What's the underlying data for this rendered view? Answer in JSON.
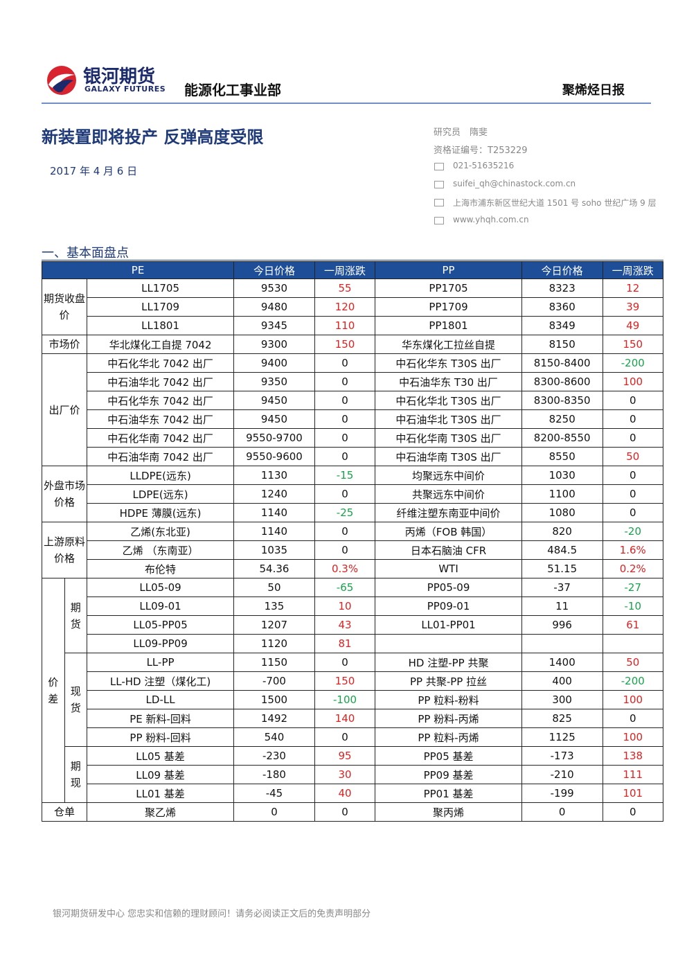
{
  "header": {
    "logo_cn": "银河期货",
    "logo_en": "GALAXY FUTURES",
    "dept": "能源化工事业部",
    "report": "聚烯烃日报"
  },
  "title": "新装置即将投产 反弹高度受限",
  "date": "2017 年 4 月 6 日",
  "contact": {
    "researcher": "研究员　隋斐",
    "cert": "资格证编号：T253229",
    "phone": "021-51635216",
    "email": "suifei_qh@chinastock.com.cn",
    "address": "上海市浦东新区世纪大道 1501 号 soho 世纪广场 9 层",
    "web": "www.yhqh.com.cn"
  },
  "section": "一、基本面盘点",
  "table": {
    "header": [
      "PE",
      "今日价格",
      "一周涨跌",
      "PP",
      "今日价格",
      "一周涨跌"
    ],
    "groups": [
      {
        "label": "期货收盘价",
        "rows": [
          [
            "LL1705",
            "9530",
            "55",
            "PP1705",
            "8323",
            "12"
          ],
          [
            "LL1709",
            "9480",
            "120",
            "PP1709",
            "8360",
            "39"
          ],
          [
            "LL1801",
            "9345",
            "110",
            "PP1801",
            "8349",
            "49"
          ]
        ]
      },
      {
        "label": "市场价",
        "rows": [
          [
            "华北煤化工自提 7042",
            "9300",
            "150",
            "华东煤化工拉丝自提",
            "8150",
            "150"
          ]
        ]
      },
      {
        "label": "出厂价",
        "rows": [
          [
            "中石化华北 7042 出厂",
            "9400",
            "0",
            "中石化华东 T30S 出厂",
            "8150-8400",
            "-200"
          ],
          [
            "中石油华北 7042 出厂",
            "9350",
            "0",
            "中石油华东 T30 出厂",
            "8300-8600",
            "100"
          ],
          [
            "中石化华东 7042 出厂",
            "9450",
            "0",
            "中石化华北 T30S 出厂",
            "8300-8350",
            "0"
          ],
          [
            "中石油华东 7042 出厂",
            "9450",
            "0",
            "中石油华北 T30S 出厂",
            "8250",
            "0"
          ],
          [
            "中石化华南 7042 出厂",
            "9550-9700",
            "0",
            "中石化华南 T30S 出厂",
            "8200-8550",
            "0"
          ],
          [
            "中石油华南 7042 出厂",
            "9550-9600",
            "0",
            "中石油华南 T30S 出厂",
            "8550",
            "50"
          ]
        ]
      },
      {
        "label": "外盘市场价格",
        "rows": [
          [
            "LLDPE(远东)",
            "1130",
            "-15",
            "均聚远东中间价",
            "1030",
            "0"
          ],
          [
            "LDPE(远东)",
            "1240",
            "0",
            "共聚远东中间价",
            "1100",
            "0"
          ],
          [
            "HDPE 薄膜(远东)",
            "1140",
            "-25",
            "纤维注塑东南亚中间价",
            "1080",
            "0"
          ]
        ]
      },
      {
        "label": "上游原料价格",
        "rows": [
          [
            "乙烯(东北亚)",
            "1140",
            "0",
            "丙烯（FOB 韩国）",
            "820",
            "-20"
          ],
          [
            "乙烯 （东南亚）",
            "1035",
            "0",
            "日本石脑油 CFR",
            "484.5",
            "1.6%"
          ],
          [
            "布伦特",
            "54.36",
            "0.3%",
            "WTI",
            "51.15",
            "0.2%"
          ]
        ]
      },
      {
        "label": "价差",
        "subgroups": [
          {
            "label": "期货",
            "rows": [
              [
                "LL05-09",
                "50",
                "-65",
                "PP05-09",
                "-37",
                "-27"
              ],
              [
                "LL09-01",
                "135",
                "10",
                "PP09-01",
                "11",
                "-10"
              ],
              [
                "LL05-PP05",
                "1207",
                "43",
                "LL01-PP01",
                "996",
                "61"
              ],
              [
                "LL09-PP09",
                "1120",
                "81"
              ]
            ]
          },
          {
            "label": "现货",
            "rows": [
              [
                "LL-PP",
                "1150",
                "0",
                "HD 注塑-PP 共聚",
                "1400",
                "50"
              ],
              [
                "LL-HD 注塑（煤化工)",
                "-700",
                "150",
                "PP 共聚-PP 拉丝",
                "400",
                "-200"
              ],
              [
                "LD-LL",
                "1500",
                "-100",
                "PP 粒料-粉料",
                "300",
                "100"
              ],
              [
                "PE 新料-回料",
                "1492",
                "140",
                "PP 粉料-丙烯",
                "825",
                "0"
              ],
              [
                "PP 粉料-回料",
                "540",
                "0",
                "PP 粒料-丙烯",
                "1125",
                "100"
              ]
            ]
          },
          {
            "label": "期现",
            "rows": [
              [
                "LL05 基差",
                "-230",
                "95",
                "PP05 基差",
                "-173",
                "138"
              ],
              [
                "LL09 基差",
                "-180",
                "30",
                "PP09 基差",
                "-210",
                "111"
              ],
              [
                "LL01 基差",
                "-45",
                "40",
                "PP01 基差",
                "-199",
                "101"
              ]
            ]
          }
        ]
      },
      {
        "label": "仓单",
        "rows": [
          [
            "聚乙烯",
            "0",
            "0",
            "聚丙烯",
            "0",
            "0"
          ]
        ]
      }
    ]
  },
  "footer": "银河期货研发中心  您忠实和信赖的理财顾问！请务必阅读正文后的免责声明部分"
}
